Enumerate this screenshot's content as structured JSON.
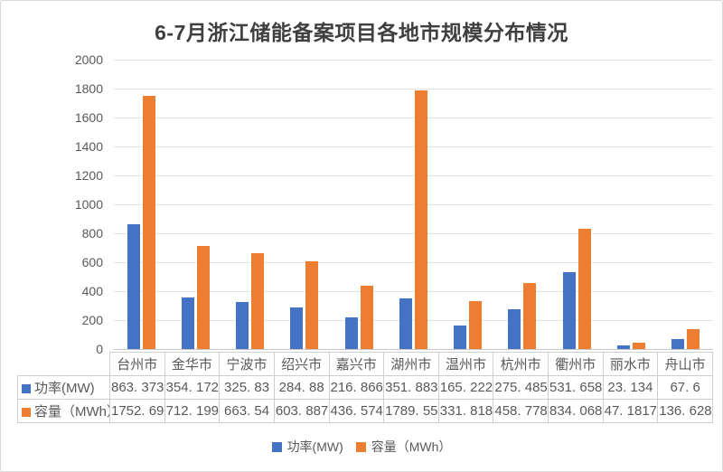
{
  "title": "6-7月浙江储能备案项目各地市规模分布情况",
  "colors": {
    "power_blue": "#4472C4",
    "capacity_orange": "#ED7D31",
    "text_gray": "#595959",
    "gridline": "#E4E4E4"
  },
  "chart_data": {
    "type": "bar",
    "title": "6-7月浙江储能备案项目各地市规模分布情况",
    "categories": [
      "台州市",
      "金华市",
      "宁波市",
      "绍兴市",
      "嘉兴市",
      "湖州市",
      "温州市",
      "杭州市",
      "衢州市",
      "丽水市",
      "舟山市"
    ],
    "series": [
      {
        "key": "power",
        "name": "功率(MW)",
        "color": "#4472C4",
        "values": [
          863.373,
          354.172,
          325.83,
          284.88,
          216.866,
          351.883,
          165.222,
          275.485,
          531.658,
          23.134,
          67.6
        ]
      },
      {
        "key": "capacity",
        "name": "容量（MWh）",
        "color": "#ED7D31",
        "values": [
          1752.69,
          712.199,
          663.54,
          603.887,
          436.574,
          1789.55,
          331.818,
          458.778,
          834.068,
          47.1817,
          136.628
        ]
      }
    ],
    "xlabel": "",
    "ylabel": "",
    "ylim": [
      0,
      2000
    ],
    "yticks": [
      0,
      200,
      400,
      600,
      800,
      1000,
      1200,
      1400,
      1600,
      1800,
      2000
    ],
    "grid": true,
    "legend_position": "bottom"
  },
  "data_table": {
    "city_header": [
      "台州市",
      "金华市",
      "宁波市",
      "绍兴市",
      "嘉兴市",
      "湖州市",
      "温州市",
      "杭州市",
      "衢州市",
      "丽水市",
      "舟山市"
    ],
    "rows": [
      {
        "label": "功率(MW)",
        "color": "#4472C4",
        "cells": [
          "863. 373",
          "354. 172",
          "325. 83",
          "284. 88",
          "216. 866",
          "351. 883",
          "165. 222",
          "275. 485",
          "531. 658",
          "23. 134",
          "67. 6"
        ]
      },
      {
        "label": "容量（MWh）",
        "color": "#ED7D31",
        "cells": [
          "1752. 69",
          "712. 199",
          "663. 54",
          "603. 887",
          "436. 574",
          "1789. 55",
          "331. 818",
          "458. 778",
          "834. 068",
          "47. 1817",
          "136. 628"
        ]
      }
    ]
  },
  "legend": {
    "items": [
      {
        "label": "功率(MW)",
        "color": "#4472C4"
      },
      {
        "label": "容量（MWh）",
        "color": "#ED7D31"
      }
    ]
  }
}
